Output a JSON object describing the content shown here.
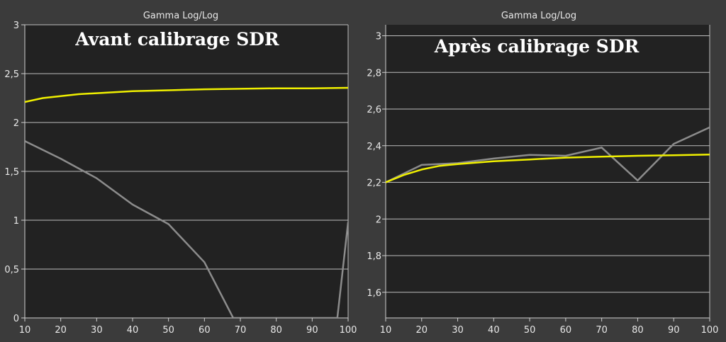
{
  "chart_data": [
    {
      "type": "line",
      "title": "Gamma Log/Log",
      "annotation": "Avant calibrage SDR",
      "xlim": [
        10,
        100
      ],
      "ylim": [
        0,
        3
      ],
      "xticks": [
        10,
        20,
        30,
        40,
        50,
        60,
        70,
        80,
        90,
        100
      ],
      "xtick_labels": [
        "10",
        "20",
        "30",
        "40",
        "50",
        "60",
        "70",
        "80",
        "90",
        "100"
      ],
      "yticks": [
        0,
        0.5,
        1,
        1.5,
        2,
        2.5,
        3
      ],
      "ytick_labels": [
        "0",
        "0,5",
        "1",
        "1,5",
        "2",
        "2,5",
        "3"
      ],
      "grid": true,
      "series": [
        {
          "color": "#f0f000",
          "x": [
            10,
            15,
            20,
            25,
            30,
            40,
            50,
            60,
            70,
            80,
            90,
            100
          ],
          "y": [
            2.21,
            2.25,
            2.27,
            2.29,
            2.3,
            2.32,
            2.33,
            2.34,
            2.345,
            2.35,
            2.35,
            2.355
          ]
        },
        {
          "color": "#8c8c8c",
          "x": [
            10,
            20,
            30,
            40,
            50,
            60,
            68,
            97,
            100
          ],
          "y": [
            1.81,
            1.63,
            1.43,
            1.16,
            0.96,
            0.57,
            0,
            0,
            0.98
          ]
        }
      ]
    },
    {
      "type": "line",
      "title": "Gamma Log/Log",
      "annotation": "Après calibrage SDR",
      "xlim": [
        10,
        100
      ],
      "ylim": [
        1.46,
        3.06
      ],
      "xticks": [
        10,
        20,
        30,
        40,
        50,
        60,
        70,
        80,
        90,
        100
      ],
      "xtick_labels": [
        "10",
        "20",
        "30",
        "40",
        "50",
        "60",
        "70",
        "80",
        "90",
        "100"
      ],
      "yticks": [
        1.6,
        1.8,
        2,
        2.2,
        2.4,
        2.6,
        2.8,
        3
      ],
      "ytick_labels": [
        "1,6",
        "1,8",
        "2",
        "2,2",
        "2,4",
        "2,6",
        "2,8",
        "3"
      ],
      "grid": true,
      "series": [
        {
          "color": "#f0f000",
          "x": [
            10,
            15,
            20,
            25,
            30,
            40,
            50,
            60,
            70,
            80,
            90,
            100
          ],
          "y": [
            2.2,
            2.24,
            2.27,
            2.29,
            2.3,
            2.315,
            2.325,
            2.335,
            2.34,
            2.345,
            2.348,
            2.352
          ]
        },
        {
          "color": "#8c8c8c",
          "x": [
            10,
            20,
            30,
            40,
            50,
            60,
            70,
            80,
            90,
            100
          ],
          "y": [
            2.2,
            2.295,
            2.305,
            2.33,
            2.35,
            2.345,
            2.39,
            2.21,
            2.41,
            2.5
          ]
        }
      ]
    }
  ]
}
